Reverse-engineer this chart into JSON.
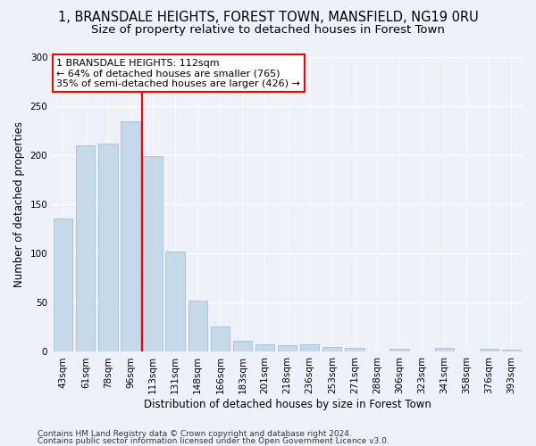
{
  "title_line1": "1, BRANSDALE HEIGHTS, FOREST TOWN, MANSFIELD, NG19 0RU",
  "title_line2": "Size of property relative to detached houses in Forest Town",
  "xlabel": "Distribution of detached houses by size in Forest Town",
  "ylabel": "Number of detached properties",
  "bar_color": "#c6d9ea",
  "bar_edgecolor": "#9ab8d0",
  "categories": [
    "43sqm",
    "61sqm",
    "78sqm",
    "96sqm",
    "113sqm",
    "131sqm",
    "148sqm",
    "166sqm",
    "183sqm",
    "201sqm",
    "218sqm",
    "236sqm",
    "253sqm",
    "271sqm",
    "288sqm",
    "306sqm",
    "323sqm",
    "341sqm",
    "358sqm",
    "376sqm",
    "393sqm"
  ],
  "values": [
    136,
    210,
    212,
    235,
    199,
    102,
    52,
    26,
    11,
    8,
    7,
    8,
    5,
    4,
    0,
    3,
    0,
    4,
    0,
    3,
    2
  ],
  "vline_index": 3.5,
  "annotation_text": "1 BRANSDALE HEIGHTS: 112sqm\n← 64% of detached houses are smaller (765)\n35% of semi-detached houses are larger (426) →",
  "annotation_box_color": "white",
  "annotation_box_edgecolor": "red",
  "vline_color": "red",
  "ylim": [
    0,
    300
  ],
  "yticks": [
    0,
    50,
    100,
    150,
    200,
    250,
    300
  ],
  "footer_line1": "Contains HM Land Registry data © Crown copyright and database right 2024.",
  "footer_line2": "Contains public sector information licensed under the Open Government Licence v3.0.",
  "background_color": "#eef2f8",
  "grid_color": "white",
  "title_fontsize": 10.5,
  "subtitle_fontsize": 9.5,
  "axis_label_fontsize": 8.5,
  "tick_fontsize": 7.5,
  "footer_fontsize": 6.5,
  "annotation_fontsize": 8
}
